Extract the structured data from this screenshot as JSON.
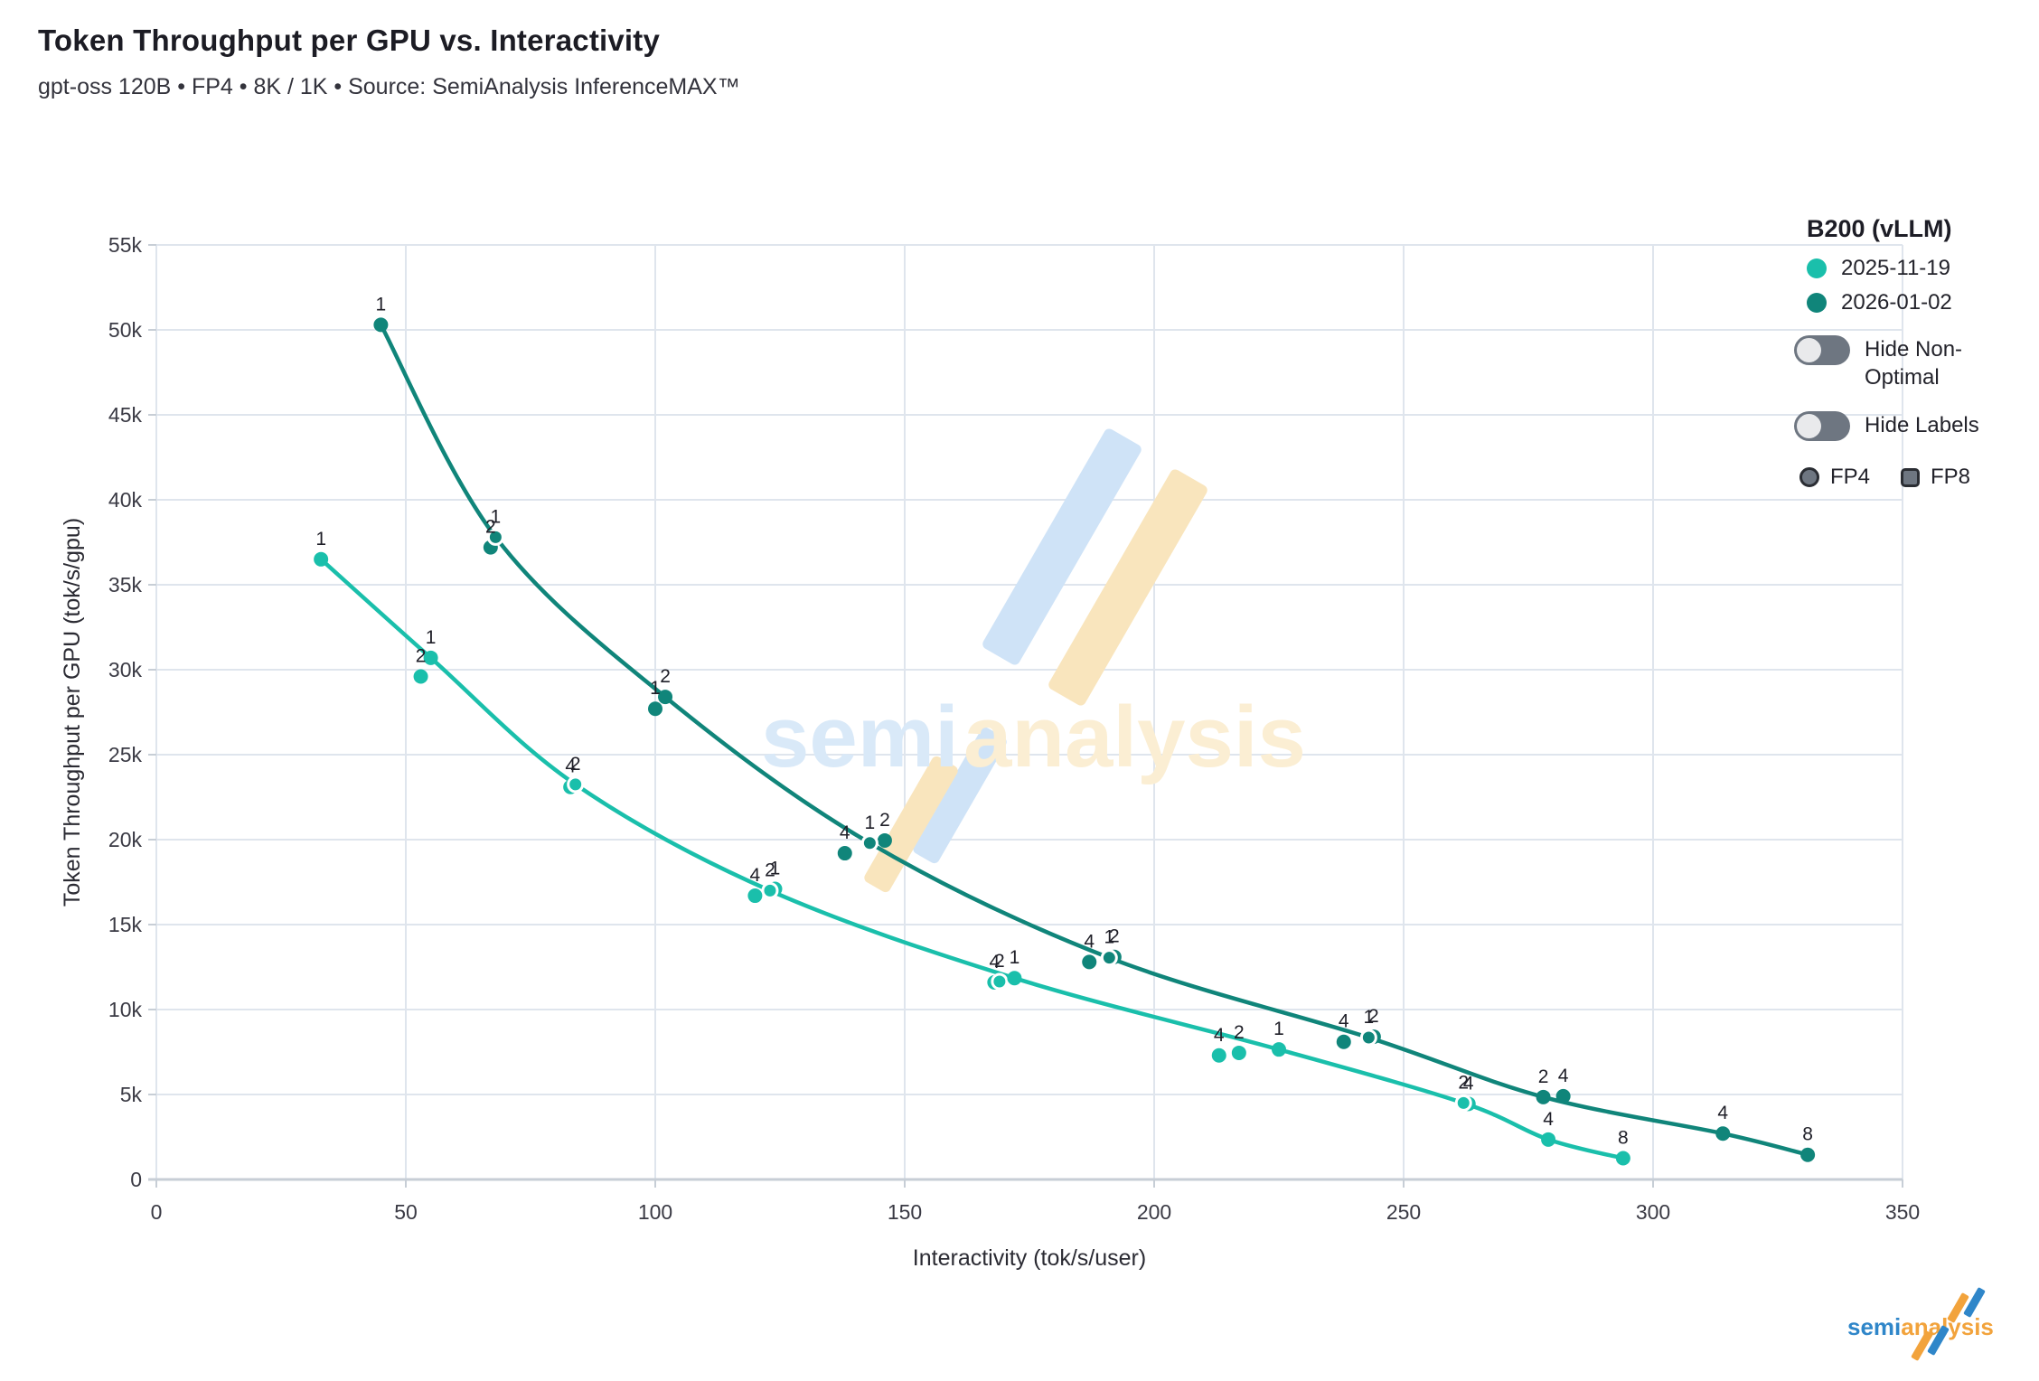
{
  "header": {
    "title": "Token Throughput per GPU vs. Interactivity",
    "subtitle": "gpt-oss 120B • FP4 • 8K / 1K • Source: SemiAnalysis InferenceMAX™"
  },
  "legend": {
    "title": "B200 (vLLM)",
    "entries": [
      {
        "label": "2025-11-19",
        "color": "#1abfab"
      },
      {
        "label": "2026-01-02",
        "color": "#10857a"
      }
    ],
    "toggles": [
      {
        "label": "Hide Non-Optimal",
        "line1": "Hide Non-",
        "line2": "Optimal",
        "state": "off"
      },
      {
        "label": "Hide Labels",
        "line1": "Hide Labels",
        "line2": "",
        "state": "off"
      }
    ],
    "shape_markers": [
      {
        "label": "FP4",
        "shape": "circle"
      },
      {
        "label": "FP8",
        "shape": "square"
      }
    ]
  },
  "watermark": {
    "part1": "semi",
    "part2": "analysis"
  },
  "footer_logo": {
    "part1": "semi",
    "part2": "analysis"
  },
  "chart_data": {
    "type": "line",
    "title": "Token Throughput per GPU vs. Interactivity",
    "subtitle": "gpt-oss 120B • FP4 • 8K / 1K • Source: SemiAnalysis InferenceMAX™",
    "xlabel": "Interactivity (tok/s/user)",
    "ylabel": "Token Throughput per GPU (tok/s/gpu)",
    "xlim": [
      0,
      350
    ],
    "ylim": [
      0,
      55000
    ],
    "grid": true,
    "legend_position": "top-right",
    "xticks": [
      {
        "v": 0,
        "label": "0"
      },
      {
        "v": 50,
        "label": "50"
      },
      {
        "v": 100,
        "label": "100"
      },
      {
        "v": 150,
        "label": "150"
      },
      {
        "v": 200,
        "label": "200"
      },
      {
        "v": 250,
        "label": "250"
      },
      {
        "v": 300,
        "label": "300"
      },
      {
        "v": 350,
        "label": "350"
      }
    ],
    "yticks": [
      {
        "v": 0,
        "label": "0"
      },
      {
        "v": 5000,
        "label": "5k"
      },
      {
        "v": 10000,
        "label": "10k"
      },
      {
        "v": 15000,
        "label": "15k"
      },
      {
        "v": 20000,
        "label": "20k"
      },
      {
        "v": 25000,
        "label": "25k"
      },
      {
        "v": 30000,
        "label": "30k"
      },
      {
        "v": 35000,
        "label": "35k"
      },
      {
        "v": 40000,
        "label": "40k"
      },
      {
        "v": 45000,
        "label": "45k"
      },
      {
        "v": 50000,
        "label": "50k"
      },
      {
        "v": 55000,
        "label": "55k"
      }
    ],
    "series": [
      {
        "name": "2025-11-19",
        "color": "#1abfab",
        "marker": "circle",
        "points": [
          {
            "x": 33,
            "y": 36500,
            "label": "1",
            "on_curve": true,
            "halo": false
          },
          {
            "x": 53,
            "y": 29600,
            "label": "2",
            "on_curve": false,
            "halo": false
          },
          {
            "x": 55,
            "y": 30700,
            "label": "1",
            "on_curve": true,
            "halo": false
          },
          {
            "x": 83,
            "y": 23100,
            "label": "4",
            "on_curve": false,
            "halo": false
          },
          {
            "x": 84,
            "y": 23250,
            "label": "2",
            "on_curve": true,
            "halo": true
          },
          {
            "x": 124,
            "y": 17100,
            "label": "1",
            "on_curve": false,
            "halo": false
          },
          {
            "x": 123,
            "y": 17000,
            "label": "2",
            "on_curve": true,
            "halo": true
          },
          {
            "x": 120,
            "y": 16700,
            "label": "4",
            "on_curve": false,
            "halo": false
          },
          {
            "x": 168,
            "y": 11600,
            "label": "4",
            "on_curve": false,
            "halo": false
          },
          {
            "x": 169,
            "y": 11650,
            "label": "2",
            "on_curve": false,
            "halo": true
          },
          {
            "x": 172,
            "y": 11850,
            "label": "1",
            "on_curve": true,
            "halo": false
          },
          {
            "x": 213,
            "y": 7300,
            "label": "4",
            "on_curve": false,
            "halo": false
          },
          {
            "x": 217,
            "y": 7450,
            "label": "2",
            "on_curve": false,
            "halo": false
          },
          {
            "x": 225,
            "y": 7650,
            "label": "1",
            "on_curve": true,
            "halo": false
          },
          {
            "x": 263,
            "y": 4450,
            "label": "4",
            "on_curve": false,
            "halo": false
          },
          {
            "x": 262,
            "y": 4500,
            "label": "2",
            "on_curve": true,
            "halo": true
          },
          {
            "x": 279,
            "y": 2350,
            "label": "4",
            "on_curve": true,
            "halo": false
          },
          {
            "x": 294,
            "y": 1250,
            "label": "8",
            "on_curve": true,
            "halo": false
          }
        ]
      },
      {
        "name": "2026-01-02",
        "color": "#10857a",
        "marker": "circle",
        "points": [
          {
            "x": 45,
            "y": 50300,
            "label": "1",
            "on_curve": true,
            "halo": false
          },
          {
            "x": 67,
            "y": 37200,
            "label": "2",
            "on_curve": false,
            "halo": false
          },
          {
            "x": 68,
            "y": 37800,
            "label": "1",
            "on_curve": true,
            "halo": true
          },
          {
            "x": 100,
            "y": 27700,
            "label": "1",
            "on_curve": false,
            "halo": false
          },
          {
            "x": 102,
            "y": 28400,
            "label": "2",
            "on_curve": true,
            "halo": false
          },
          {
            "x": 138,
            "y": 19200,
            "label": "4",
            "on_curve": false,
            "halo": false
          },
          {
            "x": 146,
            "y": 19950,
            "label": "2",
            "on_curve": false,
            "halo": false
          },
          {
            "x": 143,
            "y": 19800,
            "label": "1",
            "on_curve": true,
            "halo": true
          },
          {
            "x": 187,
            "y": 12800,
            "label": "4",
            "on_curve": false,
            "halo": false
          },
          {
            "x": 192,
            "y": 13100,
            "label": "2",
            "on_curve": false,
            "halo": false
          },
          {
            "x": 191,
            "y": 13050,
            "label": "1",
            "on_curve": true,
            "halo": true
          },
          {
            "x": 238,
            "y": 8100,
            "label": "4",
            "on_curve": false,
            "halo": false
          },
          {
            "x": 244,
            "y": 8400,
            "label": "2",
            "on_curve": false,
            "halo": false
          },
          {
            "x": 243,
            "y": 8350,
            "label": "1",
            "on_curve": true,
            "halo": true
          },
          {
            "x": 278,
            "y": 4850,
            "label": "2",
            "on_curve": true,
            "halo": false
          },
          {
            "x": 282,
            "y": 4900,
            "label": "4",
            "on_curve": false,
            "halo": false
          },
          {
            "x": 314,
            "y": 2700,
            "label": "4",
            "on_curve": true,
            "halo": false
          },
          {
            "x": 331,
            "y": 1450,
            "label": "8",
            "on_curve": true,
            "halo": false
          }
        ]
      }
    ],
    "colors": {
      "grid": "#dfe5ed",
      "axis_line": "#c7ced6",
      "tick_text": "#3a3a44",
      "axis_title_text": "#2b2b33",
      "point_label_text": "#1f1f28",
      "watermark_blue": "#d9e9f8",
      "watermark_orange": "#fbeed3",
      "watermark_slash_blue": "#cfe3f7",
      "watermark_slash_orange": "#f9e5bd"
    }
  }
}
